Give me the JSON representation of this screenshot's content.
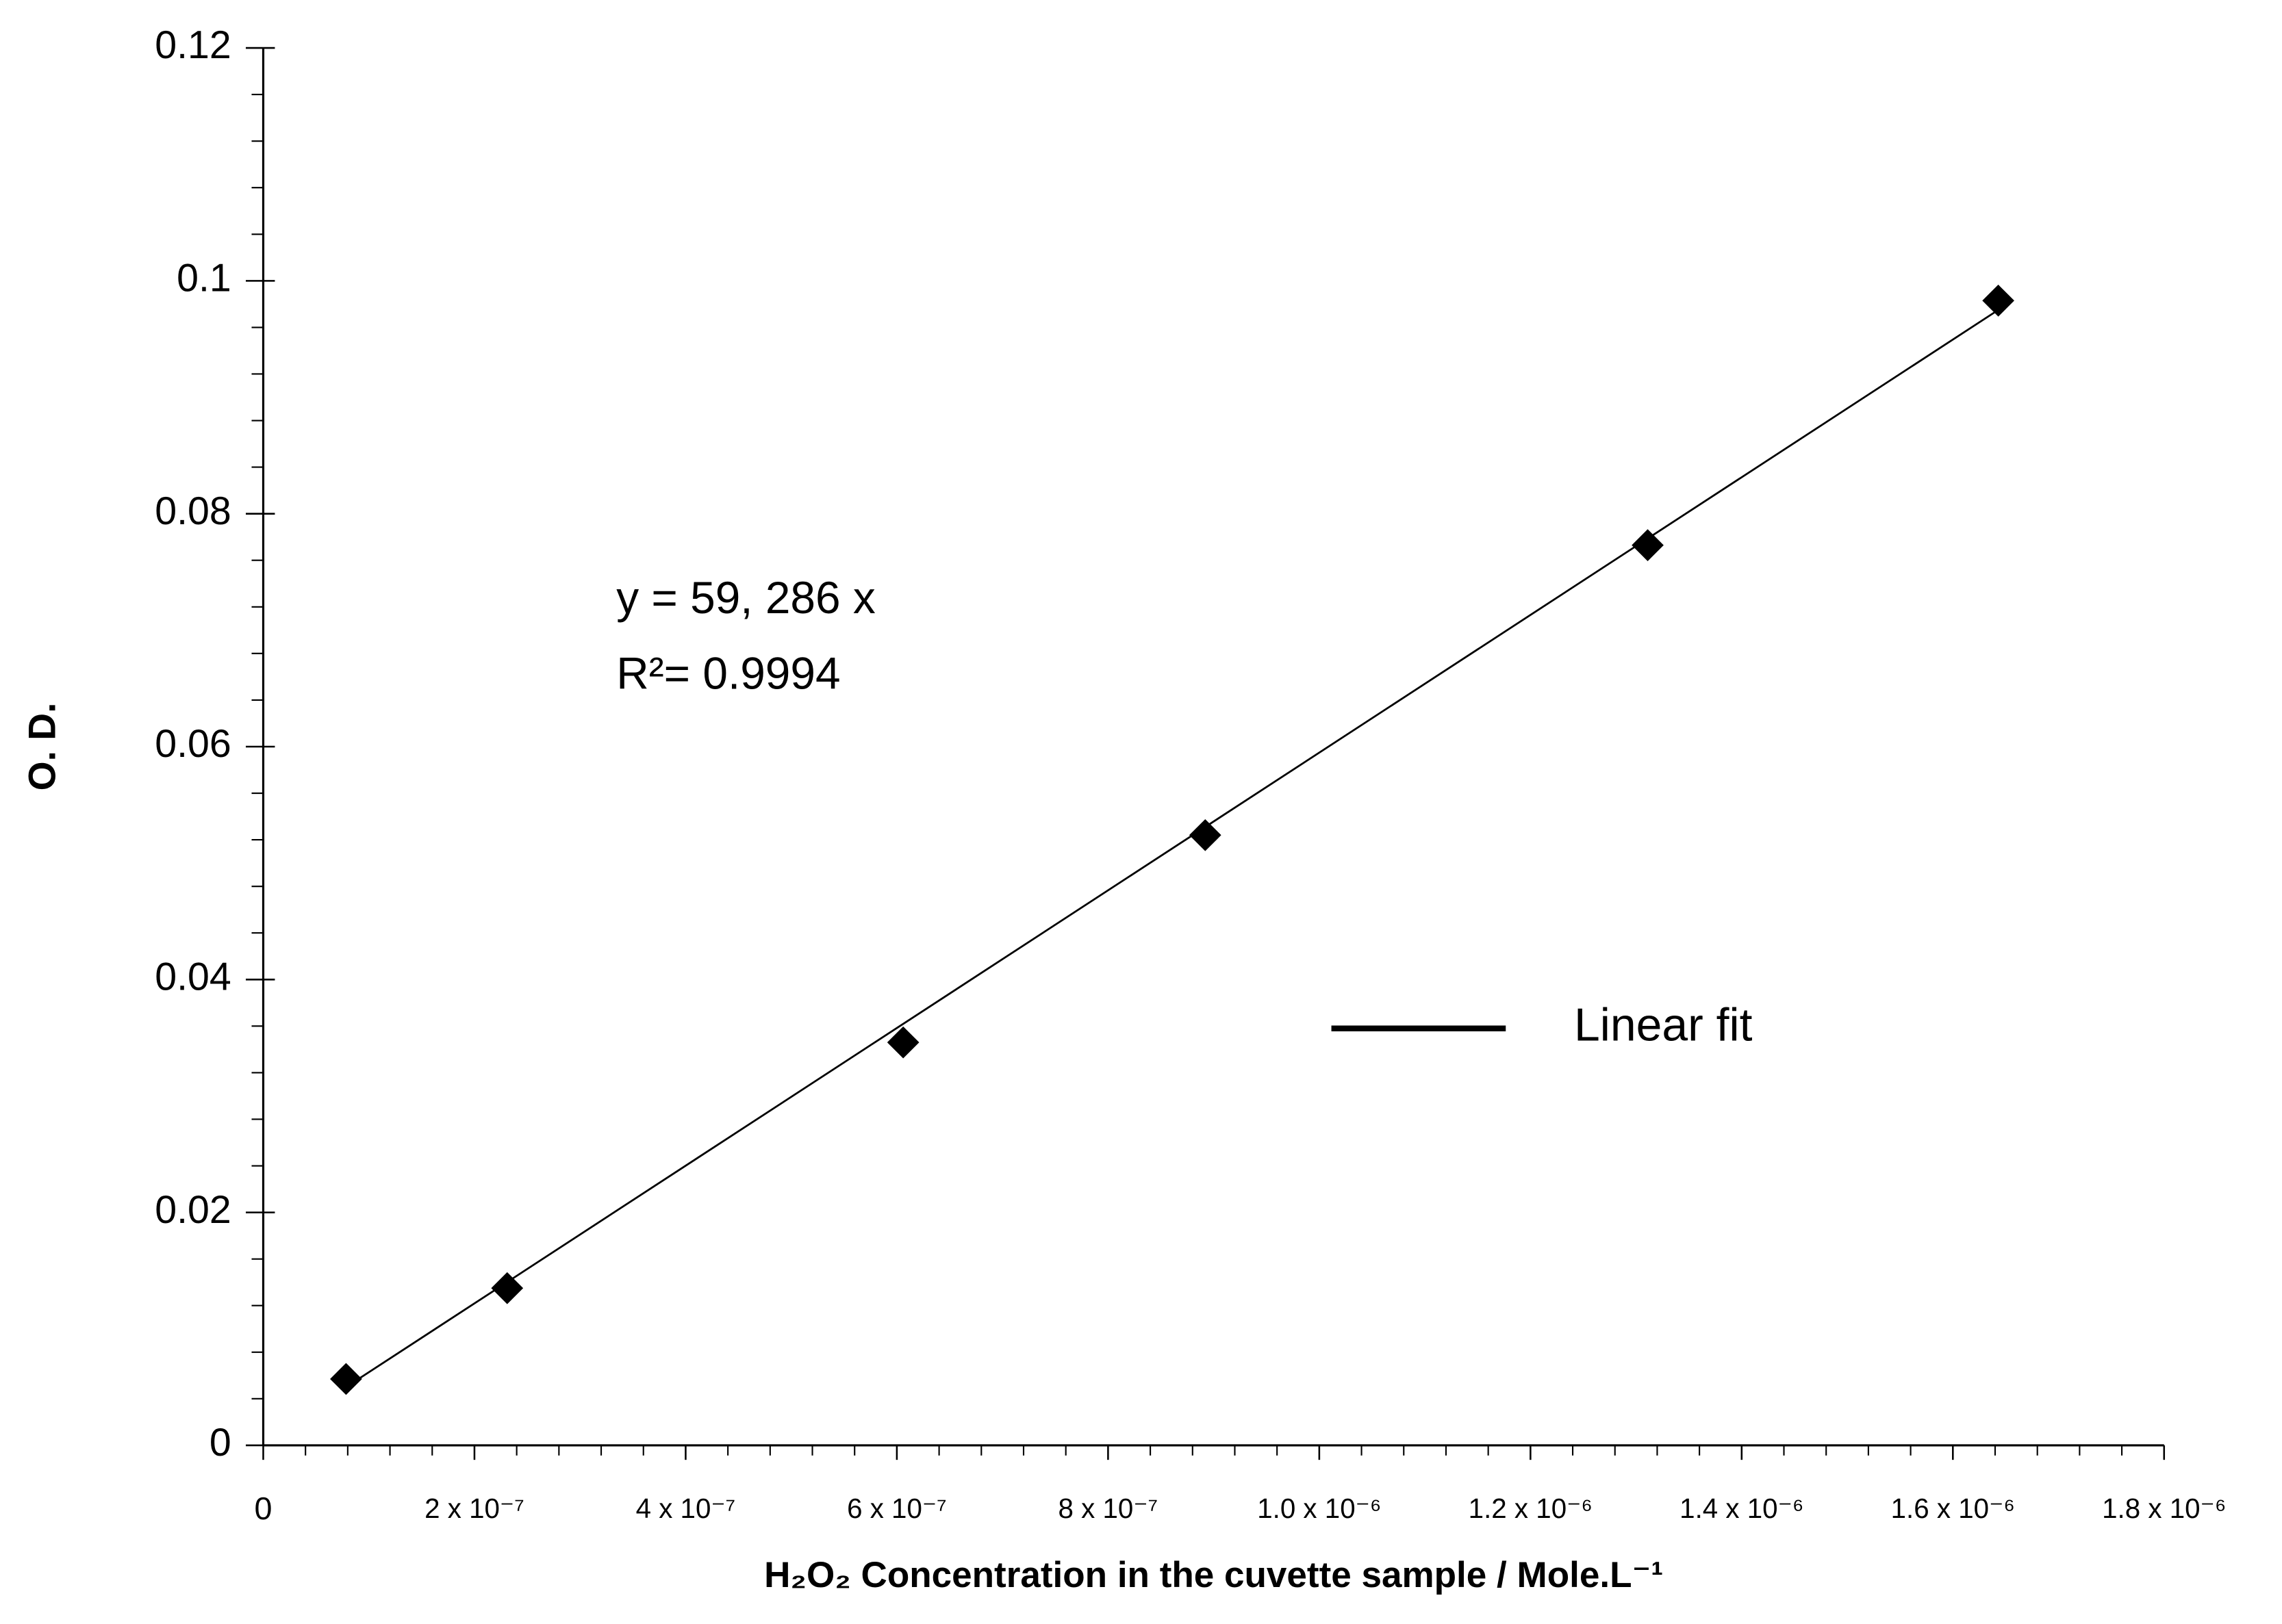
{
  "chart_data": {
    "type": "scatter",
    "x_label": "H₂O₂ Concentration in the cuvette sample / Mole.L⁻¹",
    "y_label": "O. D.",
    "annotations": [
      "y = 59, 286 x",
      "R²= 0.9994"
    ],
    "points": {
      "color": "#000000",
      "x": [
        7.84e-08,
        2.31e-07,
        6.06e-07,
        8.92e-07,
        1.311e-06,
        1.643e-06
      ],
      "values": [
        0.0057,
        0.0135,
        0.0346,
        0.0524,
        0.0773,
        0.0983
      ]
    },
    "series": [
      {
        "name": "Linear fit",
        "color": "#000000",
        "x": [
          7.84e-08,
          1.643e-06
        ],
        "values": [
          0.005,
          0.0975
        ]
      }
    ],
    "xlim": [
      0,
      1.8e-06
    ],
    "ylim": [
      0,
      0.12
    ],
    "xticks": [
      0,
      {
        "value": 2e-07,
        "label": "2 x 10⁻⁷"
      },
      {
        "value": 4e-07,
        "label": "4 x 10⁻⁷"
      },
      {
        "value": 6e-07,
        "label": "6 x 10⁻⁷"
      },
      {
        "value": 8e-07,
        "label": "8 x 10⁻⁷"
      },
      {
        "value": 1e-06,
        "label": "1.0 x 10⁻⁶"
      },
      {
        "value": 1.2e-06,
        "label": "1.2 x 10⁻⁶"
      },
      {
        "value": 1.4e-06,
        "label": "1.4 x 10⁻⁶"
      },
      {
        "value": 1.6e-06,
        "label": "1.6 x 10⁻⁶"
      },
      {
        "value": 1.8e-06,
        "label": "1.8 x 10⁻⁶"
      }
    ],
    "yticks": [
      0,
      0.02,
      0.04,
      0.06,
      0.08,
      0.1,
      0.12
    ],
    "legend_position": "right",
    "grid": false
  }
}
